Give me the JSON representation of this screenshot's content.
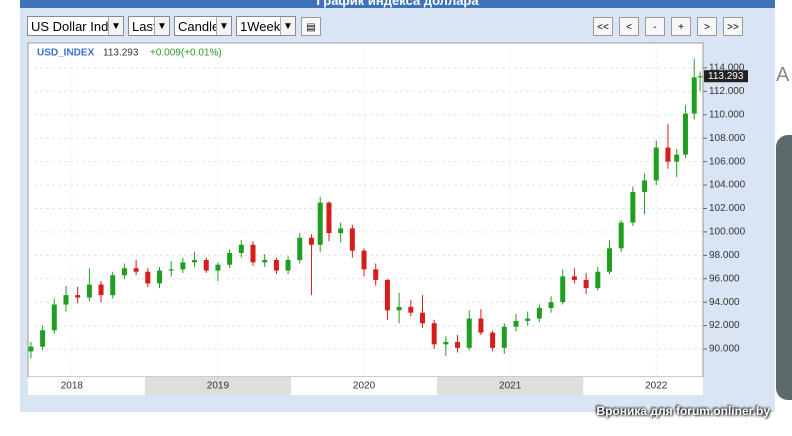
{
  "header": {
    "title": "График индекса доллара"
  },
  "toolbar": {
    "selects": [
      "US Dollar Inde",
      "Last",
      "Candle",
      "1Week"
    ],
    "nav": [
      "<<",
      "<",
      "-",
      "+",
      ">",
      ">>"
    ]
  },
  "watermark": "Вроника для forum.onliner.by",
  "side_text": "A",
  "chart_data": {
    "type": "candlestick",
    "symbol": "USD_INDEX",
    "last_price": 113.293,
    "change": "+0.009(+0.01%)",
    "up_color": "#1f9e1f",
    "down_color": "#d81b1b",
    "grid": true,
    "xlim": [
      2018.2,
      2022.82
    ],
    "ylim": [
      87.61,
      116.13
    ],
    "xticks": [
      {
        "value": 2018.5,
        "label": "2018"
      },
      {
        "value": 2019.5,
        "label": "2019"
      },
      {
        "value": 2020.5,
        "label": "2020"
      },
      {
        "value": 2021.5,
        "label": "2021"
      },
      {
        "value": 2022.5,
        "label": "2022"
      }
    ],
    "yticks": [
      {
        "value": 90,
        "label": "90.000"
      },
      {
        "value": 92,
        "label": "92.000"
      },
      {
        "value": 94,
        "label": "94.000"
      },
      {
        "value": 96,
        "label": "96.000"
      },
      {
        "value": 98,
        "label": "98.000"
      },
      {
        "value": 100,
        "label": "100.000"
      },
      {
        "value": 102,
        "label": "102.000"
      },
      {
        "value": 104,
        "label": "104.000"
      },
      {
        "value": 106,
        "label": "106.000"
      },
      {
        "value": 108,
        "label": "108.000"
      },
      {
        "value": 110,
        "label": "110.000"
      },
      {
        "value": 112,
        "label": "112.000"
      },
      {
        "value": 114,
        "label": "114.000"
      }
    ],
    "x": [
      2018.22,
      2018.3,
      2018.38,
      2018.46,
      2018.54,
      2018.62,
      2018.7,
      2018.78,
      2018.86,
      2018.94,
      2019.02,
      2019.1,
      2019.18,
      2019.26,
      2019.34,
      2019.42,
      2019.5,
      2019.58,
      2019.66,
      2019.74,
      2019.82,
      2019.9,
      2019.98,
      2020.06,
      2020.14,
      2020.2,
      2020.26,
      2020.34,
      2020.42,
      2020.5,
      2020.58,
      2020.66,
      2020.74,
      2020.82,
      2020.9,
      2020.98,
      2021.06,
      2021.14,
      2021.22,
      2021.3,
      2021.38,
      2021.46,
      2021.54,
      2021.62,
      2021.7,
      2021.78,
      2021.86,
      2021.94,
      2022.02,
      2022.1,
      2022.18,
      2022.26,
      2022.34,
      2022.42,
      2022.5,
      2022.58,
      2022.64,
      2022.7,
      2022.76,
      2022.8
    ],
    "open": [
      89.8,
      90.2,
      91.6,
      93.8,
      94.6,
      94.4,
      95.5,
      94.6,
      96.3,
      96.9,
      96.6,
      95.6,
      96.7,
      96.8,
      97.4,
      97.6,
      96.7,
      97.2,
      98.2,
      98.9,
      97.4,
      97.6,
      96.7,
      97.6,
      99.5,
      98.9,
      102.5,
      99.9,
      100.3,
      98.4,
      96.8,
      95.9,
      93.3,
      93.6,
      93.1,
      92.2,
      90.4,
      90.6,
      90.1,
      92.6,
      91.4,
      90.1,
      91.9,
      92.4,
      92.6,
      93.5,
      94.0,
      96.2,
      95.9,
      95.2,
      96.6,
      98.6,
      100.8,
      103.4,
      104.4,
      107.2,
      106.0,
      106.6,
      110.1,
      113.2
    ],
    "high": [
      90.6,
      92.0,
      94.3,
      95.4,
      95.3,
      96.9,
      95.8,
      96.6,
      97.3,
      97.6,
      96.9,
      97.0,
      97.5,
      97.8,
      98.3,
      97.8,
      97.4,
      98.5,
      99.3,
      99.2,
      98.1,
      97.8,
      97.9,
      99.9,
      99.8,
      103.0,
      102.6,
      100.8,
      100.6,
      98.6,
      97.3,
      96.0,
      94.8,
      94.2,
      94.6,
      92.5,
      91.1,
      91.2,
      93.3,
      93.4,
      91.6,
      92.2,
      93.0,
      93.2,
      93.8,
      94.5,
      96.8,
      96.9,
      96.5,
      97.0,
      99.3,
      101.0,
      103.9,
      105.0,
      107.8,
      109.2,
      107.1,
      110.8,
      114.8,
      113.7
    ],
    "low": [
      89.2,
      89.9,
      91.3,
      93.2,
      93.9,
      94.1,
      94.0,
      94.3,
      96.0,
      96.3,
      95.3,
      95.2,
      96.2,
      96.5,
      97.0,
      96.5,
      95.8,
      96.9,
      97.8,
      97.1,
      97.0,
      96.4,
      96.4,
      97.3,
      94.6,
      98.3,
      99.2,
      99.1,
      97.8,
      96.2,
      95.4,
      92.5,
      92.2,
      92.8,
      91.8,
      90.0,
      89.4,
      89.7,
      89.9,
      91.2,
      89.8,
      89.6,
      91.5,
      92.0,
      92.3,
      93.1,
      93.8,
      95.6,
      94.7,
      95.0,
      96.4,
      98.3,
      100.5,
      101.5,
      104.0,
      105.4,
      104.7,
      106.3,
      109.6,
      112.0
    ],
    "close": [
      90.2,
      91.6,
      93.8,
      94.6,
      94.4,
      95.5,
      94.6,
      96.3,
      96.9,
      96.6,
      95.6,
      96.7,
      96.8,
      97.4,
      97.6,
      96.7,
      97.2,
      98.2,
      98.9,
      97.4,
      97.6,
      96.7,
      97.6,
      99.5,
      98.9,
      102.5,
      99.9,
      100.3,
      98.4,
      96.8,
      95.9,
      93.3,
      93.6,
      93.1,
      92.2,
      90.4,
      90.6,
      90.1,
      92.6,
      91.4,
      90.1,
      91.9,
      92.4,
      92.6,
      93.5,
      94.0,
      96.2,
      95.9,
      95.2,
      96.6,
      98.6,
      100.8,
      103.4,
      104.4,
      107.2,
      106.0,
      106.6,
      110.1,
      113.2,
      113.293
    ]
  }
}
